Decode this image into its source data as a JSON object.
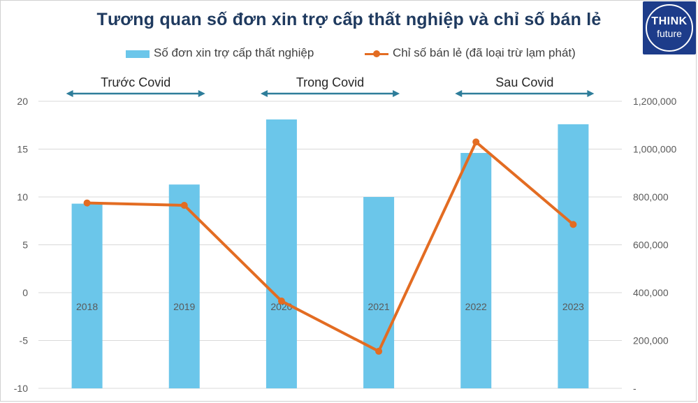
{
  "chart_data": {
    "type": "bar",
    "title": "Tương quan số đơn xin trợ cấp thất nghiệp và chỉ số bán lẻ",
    "categories": [
      "2018",
      "2019",
      "2020",
      "2021",
      "2022",
      "2023"
    ],
    "series": [
      {
        "name": "Số đơn xin trợ cấp thất nghiệp",
        "type": "bar",
        "axis": "left",
        "values": [
          9.3,
          11.3,
          18.1,
          10.0,
          14.6,
          17.6
        ],
        "color": "#6bc6ea"
      },
      {
        "name": "Chỉ số bán lẻ (đã loại trừ lạm phát)",
        "type": "line",
        "axis": "right",
        "values": [
          775000,
          765000,
          365000,
          155000,
          1030000,
          685000
        ],
        "color": "#e36c22"
      }
    ],
    "y_left": {
      "min": -10,
      "max": 20,
      "step": 5,
      "tick_labels": [
        "-10",
        "-5",
        "0",
        "5",
        "10",
        "15",
        "20"
      ]
    },
    "y_right": {
      "min": 0,
      "max": 1200000,
      "step": 200000,
      "tick_labels": [
        "-",
        "200,000",
        "400,000",
        "600,000",
        "800,000",
        "1,000,000",
        "1,200,000"
      ]
    },
    "grid": true,
    "legend_position": "top",
    "periods": [
      {
        "label": "Trước Covid",
        "from": "2018",
        "to": "2019"
      },
      {
        "label": "Trong Covid",
        "from": "2020",
        "to": "2021"
      },
      {
        "label": "Sau Covid",
        "from": "2022",
        "to": "2023"
      }
    ]
  },
  "logo": {
    "line1": "THINK",
    "line2": "future",
    "color": "#1d3c8a"
  },
  "colors": {
    "title": "#1f3a5f",
    "grid": "#d9d9d9",
    "axis_text": "#595959",
    "arrow": "#2e7d9a"
  }
}
